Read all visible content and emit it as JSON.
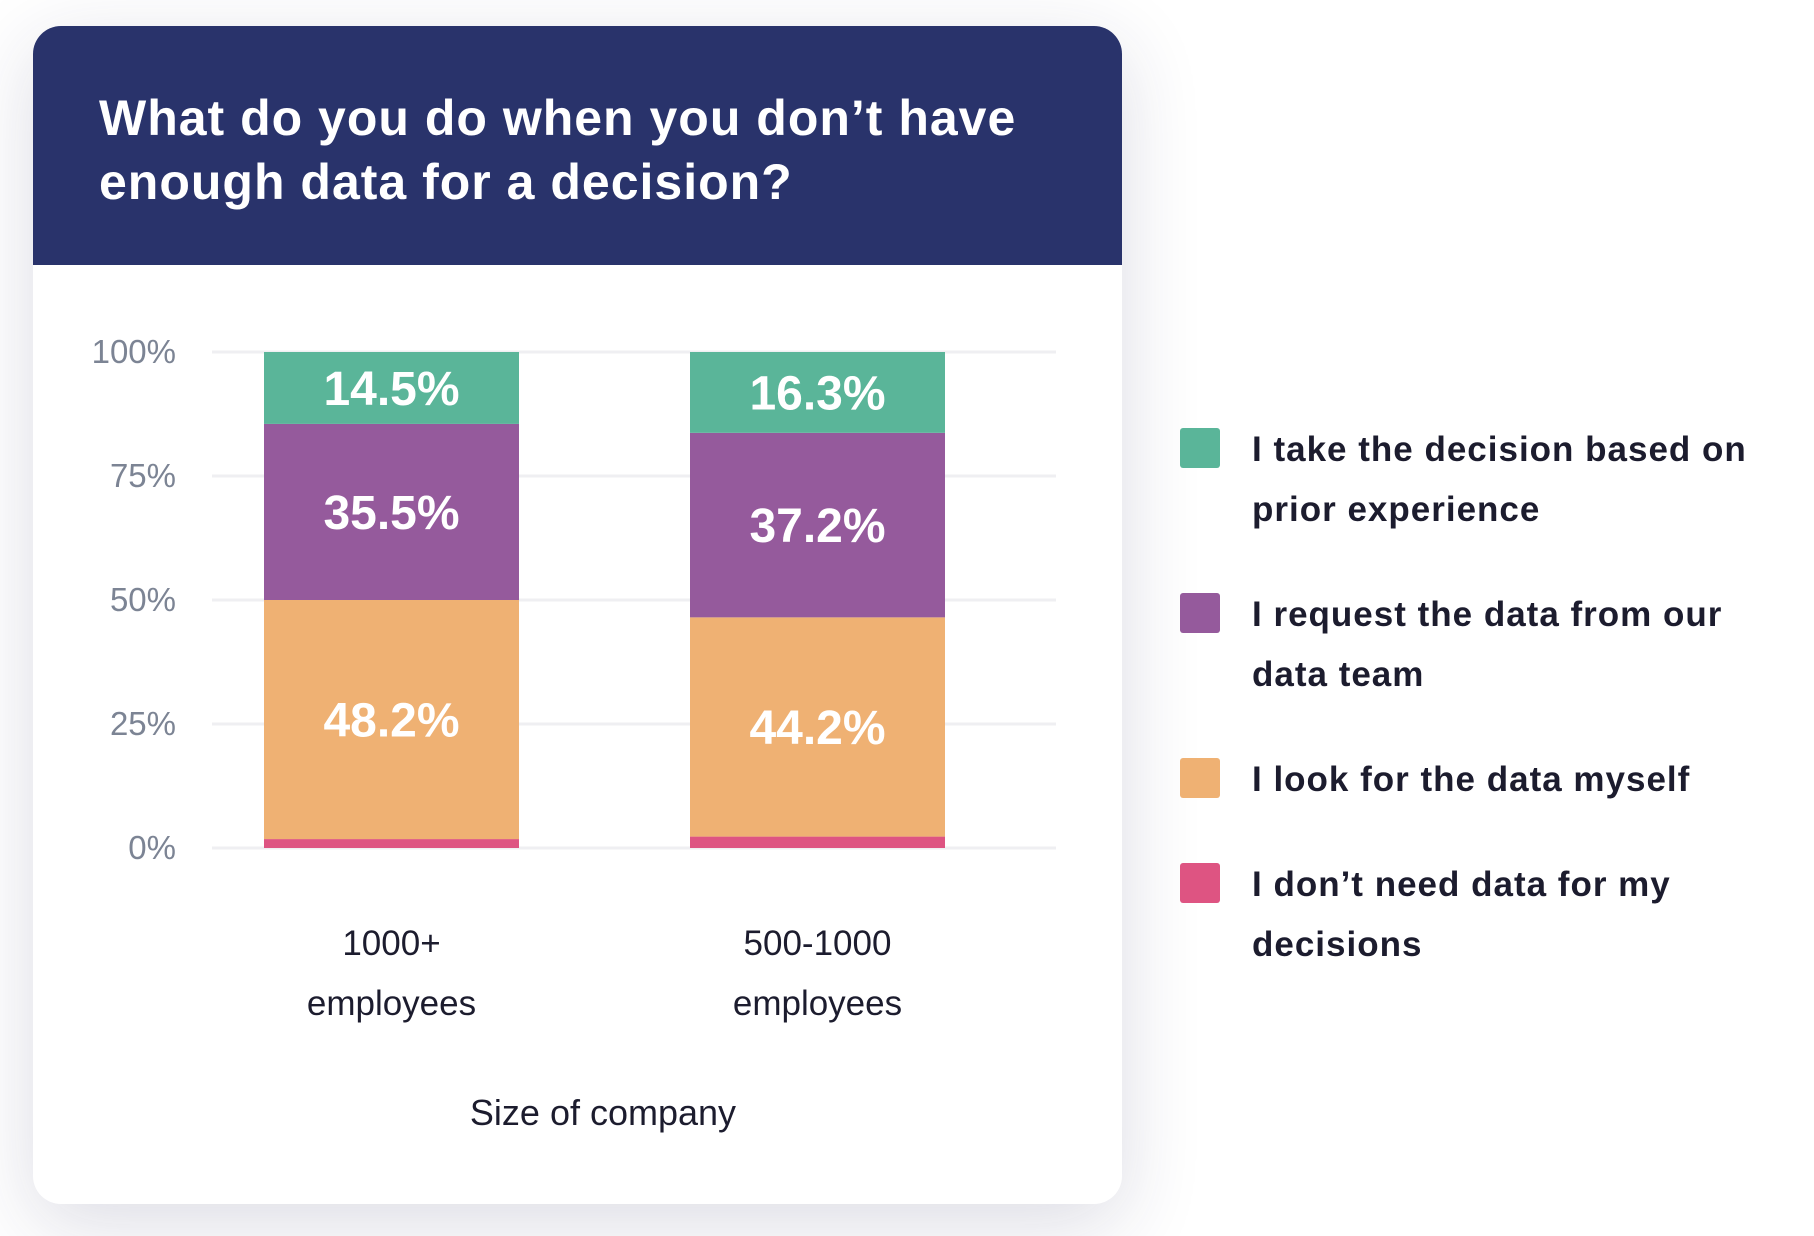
{
  "chart_data": {
    "type": "bar",
    "stacked": true,
    "title": "What do you do when you don’t have enough data for a decision?",
    "xlabel": "Size of company",
    "ylabel": "",
    "ylim": [
      0,
      100
    ],
    "yticks": [
      "0%",
      "25%",
      "50%",
      "75%",
      "100%"
    ],
    "grid": true,
    "legend_position": "right",
    "categories": [
      "1000+ employees",
      "500-1000 employees"
    ],
    "category_lines": [
      [
        "1000+",
        "employees"
      ],
      [
        "500-1000",
        "employees"
      ]
    ],
    "series": [
      {
        "name": "I don’t need data for my decisions",
        "color": "#de5482",
        "values": [
          1.8,
          2.3
        ],
        "labels": [
          "",
          ""
        ]
      },
      {
        "name": "I look for the data myself",
        "color": "#efb173",
        "values": [
          48.2,
          44.2
        ],
        "labels": [
          "48.2%",
          "44.2%"
        ]
      },
      {
        "name": "I request the data from our data team",
        "color": "#955a9c",
        "values": [
          35.5,
          37.2
        ],
        "labels": [
          "35.5%",
          "37.2%"
        ]
      },
      {
        "name": "I take the decision based on prior experience",
        "color": "#5ab599",
        "values": [
          14.5,
          16.3
        ],
        "labels": [
          "14.5%",
          "16.3%"
        ]
      }
    ]
  },
  "legend": [
    {
      "label": "I take the decision based on prior experience",
      "color": "#5ab599"
    },
    {
      "label": "I request the data from our data team",
      "color": "#955a9c"
    },
    {
      "label": "I look for the data myself",
      "color": "#efb173"
    },
    {
      "label": "I don’t need data for my decisions",
      "color": "#de5482"
    }
  ]
}
